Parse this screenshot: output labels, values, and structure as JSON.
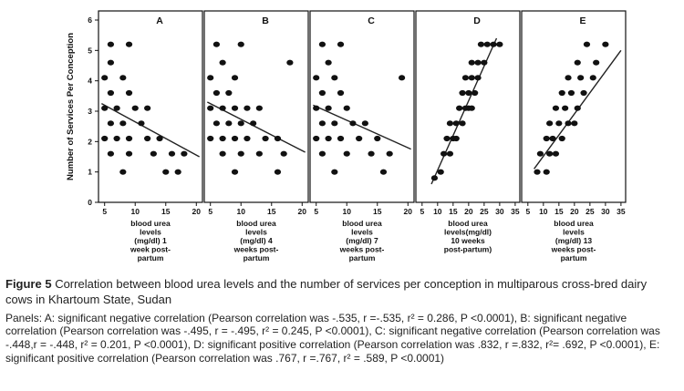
{
  "chart_data": {
    "type": "scatter",
    "ylabel": "Number of Services Per Conception",
    "ylim": [
      0,
      6.3
    ],
    "y_ticks": [
      0,
      1,
      2,
      3,
      4,
      5,
      6
    ],
    "panels": [
      {
        "label": "A",
        "xlabel": "blood urea\nlevels\n(mg/dl) 1\nweek post-\npartum",
        "x_ticks": [
          5,
          10,
          15,
          20
        ],
        "xlim": [
          4,
          21
        ],
        "trend": [
          [
            4.5,
            3.25
          ],
          [
            20.5,
            1.5
          ]
        ],
        "pearson": "-.535",
        "r": "-.535",
        "r2": "0.286",
        "p": "<0.0001",
        "points": [
          [
            6,
            5.2
          ],
          [
            9,
            5.2
          ],
          [
            6,
            4.6
          ],
          [
            5,
            4.1
          ],
          [
            8,
            4.1
          ],
          [
            6,
            3.6
          ],
          [
            9,
            3.6
          ],
          [
            5,
            3.1
          ],
          [
            7,
            3.1
          ],
          [
            10,
            3.1
          ],
          [
            12,
            3.1
          ],
          [
            6,
            2.6
          ],
          [
            8,
            2.6
          ],
          [
            11,
            2.6
          ],
          [
            5,
            2.1
          ],
          [
            7,
            2.1
          ],
          [
            9,
            2.1
          ],
          [
            12,
            2.1
          ],
          [
            14,
            2.1
          ],
          [
            6,
            1.6
          ],
          [
            9,
            1.6
          ],
          [
            13,
            1.6
          ],
          [
            16,
            1.6
          ],
          [
            18,
            1.6
          ],
          [
            8,
            1
          ],
          [
            15,
            1
          ],
          [
            17,
            1
          ]
        ]
      },
      {
        "label": "B",
        "xlabel": "blood urea\nlevels\n(mg/dl) 4\nweeks post-\npartum",
        "x_ticks": [
          5,
          10,
          15,
          20
        ],
        "xlim": [
          4,
          21
        ],
        "trend": [
          [
            4.5,
            3.3
          ],
          [
            20.5,
            1.65
          ]
        ],
        "pearson": "-.495",
        "r": "-.495",
        "r2": "0.245",
        "p": "<0.0001",
        "points": [
          [
            6,
            5.2
          ],
          [
            10,
            5.2
          ],
          [
            7,
            4.6
          ],
          [
            18,
            4.6
          ],
          [
            5,
            4.1
          ],
          [
            9,
            4.1
          ],
          [
            6,
            3.6
          ],
          [
            8,
            3.6
          ],
          [
            5,
            3.1
          ],
          [
            7,
            3.1
          ],
          [
            9,
            3.1
          ],
          [
            11,
            3.1
          ],
          [
            13,
            3.1
          ],
          [
            6,
            2.6
          ],
          [
            8,
            2.6
          ],
          [
            10,
            2.6
          ],
          [
            12,
            2.6
          ],
          [
            5,
            2.1
          ],
          [
            7,
            2.1
          ],
          [
            9,
            2.1
          ],
          [
            11,
            2.1
          ],
          [
            14,
            2.1
          ],
          [
            16,
            2.1
          ],
          [
            7,
            1.6
          ],
          [
            10,
            1.6
          ],
          [
            13,
            1.6
          ],
          [
            17,
            1.6
          ],
          [
            9,
            1
          ],
          [
            16,
            1
          ]
        ]
      },
      {
        "label": "C",
        "xlabel": "blood urea\nlevels\n(mg/dl) 7\nweeks post-\npartum",
        "x_ticks": [
          5,
          10,
          15,
          20
        ],
        "xlim": [
          4,
          21
        ],
        "trend": [
          [
            4.5,
            3.2
          ],
          [
            20.5,
            1.75
          ]
        ],
        "pearson": "-.448",
        "r": "-.448",
        "r2": "0.201",
        "p": "<0.0001",
        "points": [
          [
            6,
            5.2
          ],
          [
            9,
            5.2
          ],
          [
            7,
            4.6
          ],
          [
            5,
            4.1
          ],
          [
            8,
            4.1
          ],
          [
            19,
            4.1
          ],
          [
            6,
            3.6
          ],
          [
            9,
            3.6
          ],
          [
            5,
            3.1
          ],
          [
            7,
            3.1
          ],
          [
            10,
            3.1
          ],
          [
            6,
            2.6
          ],
          [
            8,
            2.6
          ],
          [
            11,
            2.6
          ],
          [
            13,
            2.6
          ],
          [
            5,
            2.1
          ],
          [
            7,
            2.1
          ],
          [
            9,
            2.1
          ],
          [
            12,
            2.1
          ],
          [
            15,
            2.1
          ],
          [
            6,
            1.6
          ],
          [
            10,
            1.6
          ],
          [
            14,
            1.6
          ],
          [
            17,
            1.6
          ],
          [
            8,
            1
          ],
          [
            16,
            1
          ]
        ]
      },
      {
        "label": "D",
        "xlabel": "blood urea\nlevels(mg/dl)\n10 weeks\npost-partum)",
        "x_ticks": [
          5,
          10,
          15,
          20,
          25,
          30,
          35
        ],
        "xlim": [
          3,
          36.5
        ],
        "trend": [
          [
            8,
            0.6
          ],
          [
            29,
            5.4
          ]
        ],
        "pearson": ".832",
        "r": ".832",
        "r2": ".692",
        "p": "<0.0001",
        "points": [
          [
            9,
            0.8
          ],
          [
            11,
            1
          ],
          [
            12,
            1.6
          ],
          [
            14,
            1.6
          ],
          [
            13,
            2.1
          ],
          [
            15,
            2.1
          ],
          [
            16,
            2.1
          ],
          [
            14,
            2.6
          ],
          [
            16,
            2.6
          ],
          [
            18,
            2.6
          ],
          [
            17,
            3.1
          ],
          [
            19,
            3.1
          ],
          [
            20,
            3.1
          ],
          [
            21,
            3.1
          ],
          [
            18,
            3.6
          ],
          [
            20,
            3.6
          ],
          [
            22,
            3.6
          ],
          [
            19,
            4.1
          ],
          [
            21,
            4.1
          ],
          [
            23,
            4.1
          ],
          [
            21,
            4.6
          ],
          [
            23,
            4.6
          ],
          [
            25,
            4.6
          ],
          [
            24,
            5.2
          ],
          [
            26,
            5.2
          ],
          [
            28,
            5.2
          ],
          [
            30,
            5.2
          ]
        ]
      },
      {
        "label": "E",
        "xlabel": "blood urea\nlevels\n(mg/dl) 13\nweeks post-\npartum",
        "x_ticks": [
          5,
          10,
          15,
          20,
          25,
          30,
          35
        ],
        "xlim": [
          3,
          36.5
        ],
        "trend": [
          [
            7,
            1.1
          ],
          [
            35,
            5.0
          ]
        ],
        "pearson": ".767",
        "r": ".767",
        "r2": ".589",
        "p": "<0.0001",
        "points": [
          [
            8,
            1
          ],
          [
            11,
            1
          ],
          [
            9,
            1.6
          ],
          [
            12,
            1.6
          ],
          [
            14,
            1.6
          ],
          [
            11,
            2.1
          ],
          [
            13,
            2.1
          ],
          [
            16,
            2.1
          ],
          [
            12,
            2.6
          ],
          [
            15,
            2.6
          ],
          [
            18,
            2.6
          ],
          [
            20,
            2.6
          ],
          [
            14,
            3.1
          ],
          [
            17,
            3.1
          ],
          [
            21,
            3.1
          ],
          [
            16,
            3.6
          ],
          [
            19,
            3.6
          ],
          [
            23,
            3.6
          ],
          [
            18,
            4.1
          ],
          [
            22,
            4.1
          ],
          [
            26,
            4.1
          ],
          [
            21,
            4.6
          ],
          [
            27,
            4.6
          ],
          [
            24,
            5.2
          ],
          [
            30,
            5.2
          ]
        ]
      }
    ]
  },
  "caption": {
    "label": "Figure 5",
    "title": " Correlation between blood urea levels and the number of services per conception in multiparous cross-bred dairy cows in Khartoum State, Sudan",
    "details": "Panels: A: significant negative correlation (Pearson correlation was -.535, r =-.535, r² = 0.286, P <0.0001), B: significant negative correlation (Pearson correlation was -.495, r = -.495, r² = 0.245, P <0.0001), C: significant negative correlation (Pearson correlation was -.448,r = -.448, r² = 0.201, P <0.0001), D: significant positive correlation (Pearson correlation was .832, r =.832, r²= .692, P <0.0001), E: significant positive correlation (Pearson correlation was .767, r =.767, r² = .589, P <0.0001)"
  }
}
